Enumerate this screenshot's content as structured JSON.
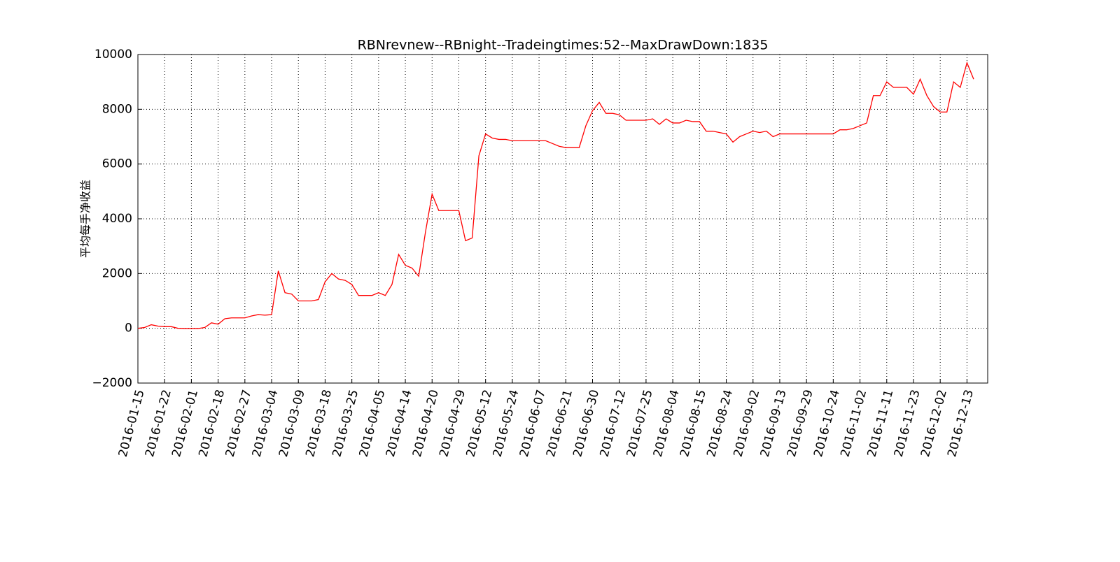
{
  "chart_data": {
    "type": "line",
    "title": "RBNrevnew--RBnight--Tradeingtimes:52--MaxDrawDown:1835",
    "y_label": "平均每手净收益",
    "color": "#ff0000",
    "grid": true,
    "ylim": [
      -2000,
      10000
    ],
    "yticks": [
      {
        "value": -2000,
        "label": "−2000"
      },
      0,
      2000,
      4000,
      6000,
      8000,
      10000
    ],
    "xlim": [
      0,
      127.1
    ],
    "xticks": [
      {
        "value": 0,
        "label": "2016-01-15"
      },
      {
        "value": 4,
        "label": "2016-01-22"
      },
      {
        "value": 8,
        "label": "2016-02-01"
      },
      {
        "value": 12,
        "label": "2016-02-18"
      },
      {
        "value": 16,
        "label": "2016-02-27"
      },
      {
        "value": 20,
        "label": "2016-03-04"
      },
      {
        "value": 24,
        "label": "2016-03-09"
      },
      {
        "value": 28,
        "label": "2016-03-18"
      },
      {
        "value": 32,
        "label": "2016-03-25"
      },
      {
        "value": 36,
        "label": "2016-04-05"
      },
      {
        "value": 40,
        "label": "2016-04-14"
      },
      {
        "value": 44,
        "label": "2016-04-20"
      },
      {
        "value": 48,
        "label": "2016-04-29"
      },
      {
        "value": 52,
        "label": "2016-05-12"
      },
      {
        "value": 56,
        "label": "2016-05-24"
      },
      {
        "value": 60,
        "label": "2016-06-07"
      },
      {
        "value": 64,
        "label": "2016-06-21"
      },
      {
        "value": 68,
        "label": "2016-06-30"
      },
      {
        "value": 72,
        "label": "2016-07-12"
      },
      {
        "value": 76,
        "label": "2016-07-25"
      },
      {
        "value": 80,
        "label": "2016-08-04"
      },
      {
        "value": 84,
        "label": "2016-08-15"
      },
      {
        "value": 88,
        "label": "2016-08-24"
      },
      {
        "value": 92,
        "label": "2016-09-02"
      },
      {
        "value": 96,
        "label": "2016-09-13"
      },
      {
        "value": 100,
        "label": "2016-09-29"
      },
      {
        "value": 104,
        "label": "2016-10-24"
      },
      {
        "value": 108,
        "label": "2016-11-02"
      },
      {
        "value": 112,
        "label": "2016-11-11"
      },
      {
        "value": 116,
        "label": "2016-11-23"
      },
      {
        "value": 120,
        "label": "2016-12-02"
      },
      {
        "value": 124,
        "label": "2016-12-13"
      }
    ],
    "values": [
      0,
      30,
      130,
      80,
      60,
      60,
      0,
      -10,
      -10,
      -10,
      30,
      200,
      150,
      350,
      380,
      380,
      380,
      450,
      500,
      480,
      500,
      2100,
      1300,
      1250,
      1000,
      1000,
      1000,
      1050,
      1700,
      2000,
      1800,
      1750,
      1600,
      1200,
      1200,
      1200,
      1300,
      1200,
      1600,
      2700,
      2300,
      2200,
      1900,
      3500,
      4900,
      4300,
      4300,
      4300,
      4300,
      3200,
      3300,
      6300,
      7100,
      6950,
      6900,
      6900,
      6850,
      6850,
      6850,
      6850,
      6850,
      6850,
      6750,
      6650,
      6600,
      6600,
      6600,
      7400,
      7950,
      8250,
      7850,
      7850,
      7800,
      7600,
      7600,
      7600,
      7600,
      7650,
      7450,
      7650,
      7500,
      7500,
      7600,
      7550,
      7550,
      7200,
      7200,
      7150,
      7100,
      6800,
      7000,
      7100,
      7200,
      7150,
      7200,
      7000,
      7100,
      7100,
      7100,
      7100,
      7100,
      7100,
      7100,
      7100,
      7100,
      7250,
      7250,
      7300,
      7400,
      7500,
      8500,
      8500,
      9000,
      8800,
      8800,
      8800,
      8550,
      9100,
      8500,
      8100,
      7900,
      7900,
      9000,
      8800,
      9700,
      9100
    ]
  }
}
